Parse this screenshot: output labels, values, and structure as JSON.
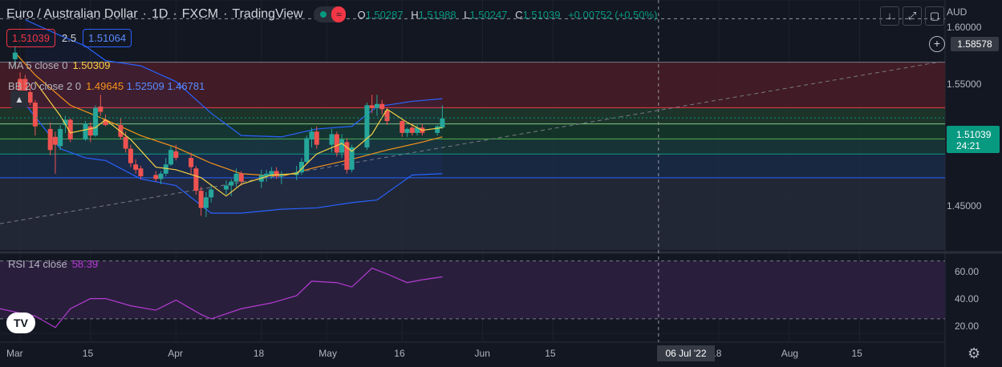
{
  "header": {
    "symbol": "Euro / Australian Dollar",
    "interval": "1D",
    "exchange": "FXCM",
    "source": "TradingView",
    "sep": "·",
    "ohlc": {
      "o_label": "O",
      "o": "1.50287",
      "h_label": "H",
      "h": "1.51988",
      "l_label": "L",
      "l": "1.50247",
      "c_label": "C",
      "c": "1.51039",
      "change": "+0.00752 (+0.50%)"
    }
  },
  "quote": {
    "sell": "1.51039",
    "spread": "2.5",
    "buy": "1.51064"
  },
  "indicators": {
    "ma": {
      "name": "MA 5 close 0",
      "value": "1.50309"
    },
    "bb": {
      "name": "BB 20 close 2 0",
      "basis": "1.49645",
      "upper": "1.52509",
      "lower": "1.46781"
    },
    "rsi": {
      "name": "RSI 14 close",
      "value": "58.39"
    }
  },
  "toolbar": {
    "download_icon": "↓",
    "fullscreen_icon": "⤢",
    "snapshot_icon": "▢"
  },
  "price_axis": {
    "currency": "AUD",
    "ticks": [
      "1.60000",
      "1.55000",
      "1.50000",
      "1.45000"
    ],
    "current_price": "1.51039",
    "countdown": "24:21",
    "crosshair_price": "1.58578",
    "add_icon": "+"
  },
  "rsi_axis": {
    "ticks": [
      "60.00",
      "40.00",
      "20.00"
    ]
  },
  "time_axis": {
    "labels": [
      "Mar",
      "15",
      "Apr",
      "18",
      "May",
      "16",
      "Jun",
      "15",
      "18",
      "Aug",
      "15"
    ],
    "crosshair_date": "06 Jul '22"
  },
  "logo_text": "TV",
  "settings_icon": "⚙",
  "colors": {
    "up": "#26a69a",
    "down": "#ef5350",
    "ma": "#f7d145",
    "bb_basis": "#f7931a",
    "bb_band": "#2962ff",
    "rsi": "#b53cd4",
    "background": "#131722"
  },
  "chart_data": {
    "type": "candlestick",
    "x_type": "date",
    "x_start": "2022-02-25",
    "x_end": "2022-09-01",
    "ylim": [
      1.41,
      1.6
    ],
    "fib_levels": [
      1.5527,
      1.5182,
      1.5058,
      1.4944,
      1.4829,
      1.4649
    ],
    "rsi_ylim": [
      15,
      72
    ],
    "rsi_levels": [
      70,
      30
    ],
    "candles": [
      {
        "d": "2022-02-28",
        "o": 1.555,
        "h": 1.565,
        "l": 1.549,
        "c": 1.56
      },
      {
        "d": "2022-03-01",
        "o": 1.54,
        "h": 1.545,
        "l": 1.525,
        "c": 1.53
      },
      {
        "d": "2022-03-02",
        "o": 1.54,
        "h": 1.543,
        "l": 1.53,
        "c": 1.531
      },
      {
        "d": "2022-03-03",
        "o": 1.53,
        "h": 1.536,
        "l": 1.52,
        "c": 1.522
      },
      {
        "d": "2022-03-04",
        "o": 1.522,
        "h": 1.524,
        "l": 1.497,
        "c": 1.504
      },
      {
        "d": "2022-03-07",
        "o": 1.502,
        "h": 1.507,
        "l": 1.482,
        "c": 1.486
      },
      {
        "d": "2022-03-08",
        "o": 1.496,
        "h": 1.5,
        "l": 1.468,
        "c": 1.49
      },
      {
        "d": "2022-03-09",
        "o": 1.489,
        "h": 1.505,
        "l": 1.486,
        "c": 1.502
      },
      {
        "d": "2022-03-10",
        "o": 1.505,
        "h": 1.512,
        "l": 1.499,
        "c": 1.509
      },
      {
        "d": "2022-03-11",
        "o": 1.509,
        "h": 1.51,
        "l": 1.492,
        "c": 1.494
      },
      {
        "d": "2022-03-14",
        "o": 1.494,
        "h": 1.508,
        "l": 1.493,
        "c": 1.506
      },
      {
        "d": "2022-03-15",
        "o": 1.504,
        "h": 1.507,
        "l": 1.492,
        "c": 1.497
      },
      {
        "d": "2022-03-16",
        "o": 1.497,
        "h": 1.52,
        "l": 1.496,
        "c": 1.518
      },
      {
        "d": "2022-03-17",
        "o": 1.519,
        "h": 1.528,
        "l": 1.512,
        "c": 1.515
      },
      {
        "d": "2022-03-18",
        "o": 1.509,
        "h": 1.513,
        "l": 1.504,
        "c": 1.505
      },
      {
        "d": "2022-03-21",
        "o": 1.505,
        "h": 1.51,
        "l": 1.494,
        "c": 1.496
      },
      {
        "d": "2022-03-22",
        "o": 1.496,
        "h": 1.5,
        "l": 1.484,
        "c": 1.487
      },
      {
        "d": "2022-03-23",
        "o": 1.487,
        "h": 1.49,
        "l": 1.473,
        "c": 1.476
      },
      {
        "d": "2022-03-24",
        "o": 1.475,
        "h": 1.479,
        "l": 1.468,
        "c": 1.471
      },
      {
        "d": "2022-03-25",
        "o": 1.472,
        "h": 1.474,
        "l": 1.464,
        "c": 1.466
      },
      {
        "d": "2022-03-28",
        "o": 1.467,
        "h": 1.47,
        "l": 1.462,
        "c": 1.464
      },
      {
        "d": "2022-03-29",
        "o": 1.464,
        "h": 1.47,
        "l": 1.46,
        "c": 1.468
      },
      {
        "d": "2022-03-30",
        "o": 1.468,
        "h": 1.48,
        "l": 1.466,
        "c": 1.475
      },
      {
        "d": "2022-03-31",
        "o": 1.475,
        "h": 1.489,
        "l": 1.474,
        "c": 1.486
      },
      {
        "d": "2022-04-01",
        "o": 1.485,
        "h": 1.49,
        "l": 1.478,
        "c": 1.48
      },
      {
        "d": "2022-04-04",
        "o": 1.48,
        "h": 1.484,
        "l": 1.468,
        "c": 1.473
      },
      {
        "d": "2022-04-05",
        "o": 1.472,
        "h": 1.474,
        "l": 1.452,
        "c": 1.455
      },
      {
        "d": "2022-04-06",
        "o": 1.455,
        "h": 1.458,
        "l": 1.436,
        "c": 1.442
      },
      {
        "d": "2022-04-07",
        "o": 1.442,
        "h": 1.454,
        "l": 1.435,
        "c": 1.45
      },
      {
        "d": "2022-04-08",
        "o": 1.45,
        "h": 1.46,
        "l": 1.446,
        "c": 1.456
      },
      {
        "d": "2022-04-11",
        "o": 1.456,
        "h": 1.463,
        "l": 1.452,
        "c": 1.459
      },
      {
        "d": "2022-04-12",
        "o": 1.459,
        "h": 1.464,
        "l": 1.451,
        "c": 1.462
      },
      {
        "d": "2022-04-13",
        "o": 1.462,
        "h": 1.472,
        "l": 1.458,
        "c": 1.468
      },
      {
        "d": "2022-04-14",
        "o": 1.468,
        "h": 1.47,
        "l": 1.459,
        "c": 1.462
      },
      {
        "d": "2022-04-18",
        "o": 1.462,
        "h": 1.471,
        "l": 1.457,
        "c": 1.467
      },
      {
        "d": "2022-04-19",
        "o": 1.466,
        "h": 1.471,
        "l": 1.462,
        "c": 1.468
      },
      {
        "d": "2022-04-20",
        "o": 1.467,
        "h": 1.473,
        "l": 1.464,
        "c": 1.47
      },
      {
        "d": "2022-04-21",
        "o": 1.47,
        "h": 1.473,
        "l": 1.464,
        "c": 1.466
      },
      {
        "d": "2022-04-22",
        "o": 1.466,
        "h": 1.47,
        "l": 1.46,
        "c": 1.467
      },
      {
        "d": "2022-04-25",
        "o": 1.467,
        "h": 1.474,
        "l": 1.463,
        "c": 1.469
      },
      {
        "d": "2022-04-26",
        "o": 1.469,
        "h": 1.48,
        "l": 1.467,
        "c": 1.477
      },
      {
        "d": "2022-04-27",
        "o": 1.477,
        "h": 1.497,
        "l": 1.476,
        "c": 1.495
      },
      {
        "d": "2022-04-28",
        "o": 1.494,
        "h": 1.503,
        "l": 1.488,
        "c": 1.5
      },
      {
        "d": "2022-04-29",
        "o": 1.5,
        "h": 1.504,
        "l": 1.487,
        "c": 1.49
      },
      {
        "d": "2022-05-02",
        "o": 1.49,
        "h": 1.502,
        "l": 1.484,
        "c": 1.498
      },
      {
        "d": "2022-05-03",
        "o": 1.498,
        "h": 1.5,
        "l": 1.481,
        "c": 1.484
      },
      {
        "d": "2022-05-04",
        "o": 1.484,
        "h": 1.498,
        "l": 1.48,
        "c": 1.494
      },
      {
        "d": "2022-05-05",
        "o": 1.492,
        "h": 1.495,
        "l": 1.468,
        "c": 1.471
      },
      {
        "d": "2022-05-06",
        "o": 1.471,
        "h": 1.49,
        "l": 1.469,
        "c": 1.488
      },
      {
        "d": "2022-05-09",
        "o": 1.488,
        "h": 1.522,
        "l": 1.486,
        "c": 1.52
      },
      {
        "d": "2022-05-10",
        "o": 1.52,
        "h": 1.528,
        "l": 1.514,
        "c": 1.518
      },
      {
        "d": "2022-05-11",
        "o": 1.518,
        "h": 1.528,
        "l": 1.512,
        "c": 1.521
      },
      {
        "d": "2022-05-12",
        "o": 1.521,
        "h": 1.524,
        "l": 1.513,
        "c": 1.517
      },
      {
        "d": "2022-05-13",
        "o": 1.516,
        "h": 1.518,
        "l": 1.505,
        "c": 1.508
      },
      {
        "d": "2022-05-16",
        "o": 1.508,
        "h": 1.509,
        "l": 1.496,
        "c": 1.499
      },
      {
        "d": "2022-05-17",
        "o": 1.499,
        "h": 1.503,
        "l": 1.496,
        "c": 1.502
      },
      {
        "d": "2022-05-18",
        "o": 1.503,
        "h": 1.506,
        "l": 1.497,
        "c": 1.499
      },
      {
        "d": "2022-05-19",
        "o": 1.499,
        "h": 1.505,
        "l": 1.497,
        "c": 1.503
      },
      {
        "d": "2022-05-20",
        "o": 1.503,
        "h": 1.506,
        "l": 1.497,
        "c": 1.499
      },
      {
        "d": "2022-05-23",
        "o": 1.499,
        "h": 1.505,
        "l": 1.497,
        "c": 1.504
      },
      {
        "d": "2022-05-24",
        "o": 1.503,
        "h": 1.52,
        "l": 1.502,
        "c": 1.51
      }
    ],
    "ma": [
      {
        "d": "2022-03-04",
        "v": 1.538
      },
      {
        "d": "2022-03-09",
        "v": 1.512
      },
      {
        "d": "2022-03-11",
        "v": 1.499
      },
      {
        "d": "2022-03-16",
        "v": 1.503
      },
      {
        "d": "2022-03-18",
        "v": 1.509
      },
      {
        "d": "2022-03-23",
        "v": 1.494
      },
      {
        "d": "2022-03-28",
        "v": 1.473
      },
      {
        "d": "2022-04-01",
        "v": 1.471
      },
      {
        "d": "2022-04-06",
        "v": 1.465
      },
      {
        "d": "2022-04-11",
        "v": 1.451
      },
      {
        "d": "2022-04-14",
        "v": 1.46
      },
      {
        "d": "2022-04-20",
        "v": 1.467
      },
      {
        "d": "2022-04-25",
        "v": 1.468
      },
      {
        "d": "2022-04-29",
        "v": 1.483
      },
      {
        "d": "2022-05-04",
        "v": 1.491
      },
      {
        "d": "2022-05-06",
        "v": 1.485
      },
      {
        "d": "2022-05-10",
        "v": 1.498
      },
      {
        "d": "2022-05-13",
        "v": 1.517
      },
      {
        "d": "2022-05-17",
        "v": 1.507
      },
      {
        "d": "2022-05-20",
        "v": 1.501
      },
      {
        "d": "2022-05-24",
        "v": 1.503
      }
    ],
    "bb_basis": [
      {
        "d": "2022-02-28",
        "v": 1.56
      },
      {
        "d": "2022-03-04",
        "v": 1.543
      },
      {
        "d": "2022-03-11",
        "v": 1.52
      },
      {
        "d": "2022-03-18",
        "v": 1.509
      },
      {
        "d": "2022-03-25",
        "v": 1.497
      },
      {
        "d": "2022-04-01",
        "v": 1.488
      },
      {
        "d": "2022-04-08",
        "v": 1.476
      },
      {
        "d": "2022-04-14",
        "v": 1.468
      },
      {
        "d": "2022-04-22",
        "v": 1.466
      },
      {
        "d": "2022-04-29",
        "v": 1.473
      },
      {
        "d": "2022-05-06",
        "v": 1.479
      },
      {
        "d": "2022-05-13",
        "v": 1.486
      },
      {
        "d": "2022-05-20",
        "v": 1.492
      },
      {
        "d": "2022-05-24",
        "v": 1.496
      }
    ],
    "bb_upper": [
      {
        "d": "2022-03-02",
        "v": 1.585
      },
      {
        "d": "2022-03-09",
        "v": 1.573
      },
      {
        "d": "2022-03-14",
        "v": 1.565
      },
      {
        "d": "2022-03-18",
        "v": 1.554
      },
      {
        "d": "2022-03-25",
        "v": 1.55
      },
      {
        "d": "2022-04-01",
        "v": 1.538
      },
      {
        "d": "2022-04-08",
        "v": 1.514
      },
      {
        "d": "2022-04-14",
        "v": 1.497
      },
      {
        "d": "2022-04-22",
        "v": 1.496
      },
      {
        "d": "2022-04-29",
        "v": 1.502
      },
      {
        "d": "2022-05-06",
        "v": 1.504
      },
      {
        "d": "2022-05-11",
        "v": 1.519
      },
      {
        "d": "2022-05-18",
        "v": 1.523
      },
      {
        "d": "2022-05-24",
        "v": 1.525
      }
    ],
    "bb_lower": [
      {
        "d": "2022-03-02",
        "v": 1.521
      },
      {
        "d": "2022-03-09",
        "v": 1.487
      },
      {
        "d": "2022-03-14",
        "v": 1.48
      },
      {
        "d": "2022-03-18",
        "v": 1.478
      },
      {
        "d": "2022-03-25",
        "v": 1.464
      },
      {
        "d": "2022-04-01",
        "v": 1.459
      },
      {
        "d": "2022-04-08",
        "v": 1.438
      },
      {
        "d": "2022-04-14",
        "v": 1.438
      },
      {
        "d": "2022-04-22",
        "v": 1.441
      },
      {
        "d": "2022-04-29",
        "v": 1.442
      },
      {
        "d": "2022-05-06",
        "v": 1.446
      },
      {
        "d": "2022-05-11",
        "v": 1.448
      },
      {
        "d": "2022-05-18",
        "v": 1.467
      },
      {
        "d": "2022-05-24",
        "v": 1.468
      }
    ],
    "trendline": [
      {
        "d": "2022-02-25",
        "v": 1.43
      },
      {
        "d": "2022-08-31",
        "v": 1.553
      }
    ],
    "rsi": [
      {
        "d": "2022-02-25",
        "v": 37
      },
      {
        "d": "2022-03-01",
        "v": 34
      },
      {
        "d": "2022-03-04",
        "v": 32
      },
      {
        "d": "2022-03-08",
        "v": 24
      },
      {
        "d": "2022-03-11",
        "v": 37
      },
      {
        "d": "2022-03-15",
        "v": 44
      },
      {
        "d": "2022-03-18",
        "v": 44
      },
      {
        "d": "2022-03-23",
        "v": 39
      },
      {
        "d": "2022-03-28",
        "v": 36
      },
      {
        "d": "2022-04-01",
        "v": 43
      },
      {
        "d": "2022-04-06",
        "v": 33
      },
      {
        "d": "2022-04-08",
        "v": 30
      },
      {
        "d": "2022-04-14",
        "v": 37
      },
      {
        "d": "2022-04-20",
        "v": 41
      },
      {
        "d": "2022-04-25",
        "v": 46
      },
      {
        "d": "2022-04-28",
        "v": 56
      },
      {
        "d": "2022-05-03",
        "v": 55
      },
      {
        "d": "2022-05-06",
        "v": 52
      },
      {
        "d": "2022-05-10",
        "v": 65
      },
      {
        "d": "2022-05-13",
        "v": 61
      },
      {
        "d": "2022-05-17",
        "v": 55
      },
      {
        "d": "2022-05-20",
        "v": 57
      },
      {
        "d": "2022-05-24",
        "v": 59
      }
    ]
  }
}
